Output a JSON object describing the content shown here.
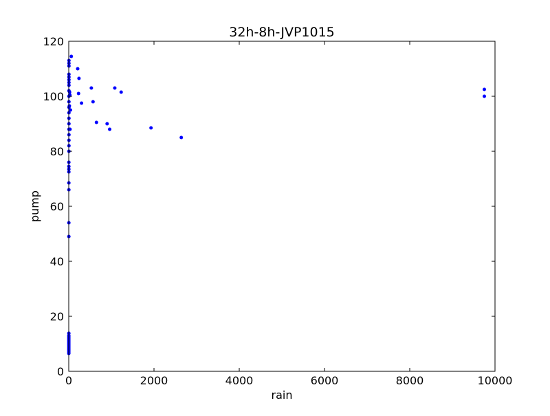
{
  "chart_data": {
    "type": "scatter",
    "title": "32h-8h-JVP1015",
    "xlabel": "rain",
    "ylabel": "pump",
    "xlim": [
      0,
      10000
    ],
    "ylim": [
      0,
      120
    ],
    "xticks": [
      0,
      2000,
      4000,
      6000,
      8000,
      10000
    ],
    "yticks": [
      0,
      20,
      40,
      60,
      80,
      100,
      120
    ],
    "xtick_labels": [
      "0",
      "2000",
      "4000",
      "6000",
      "8000",
      "10000"
    ],
    "ytick_labels": [
      "0",
      "20",
      "40",
      "60",
      "80",
      "100",
      "120"
    ],
    "grid": false,
    "marker_color": "#0000ff",
    "series": [
      {
        "points": [
          [
            2,
            6.5
          ],
          [
            2,
            7
          ],
          [
            2,
            7.5
          ],
          [
            2,
            8
          ],
          [
            2,
            8.5
          ],
          [
            2,
            9
          ],
          [
            2,
            9.5
          ],
          [
            2,
            10
          ],
          [
            2,
            10.5
          ],
          [
            2,
            11
          ],
          [
            2,
            11.5
          ],
          [
            2,
            12
          ],
          [
            2,
            12.5
          ],
          [
            2,
            13
          ],
          [
            3,
            13.8
          ],
          [
            3,
            49
          ],
          [
            3,
            54
          ],
          [
            3,
            66
          ],
          [
            3,
            68.5
          ],
          [
            3,
            72.5
          ],
          [
            3,
            73.5
          ],
          [
            3,
            74.5
          ],
          [
            3,
            76
          ],
          [
            5,
            80
          ],
          [
            5,
            82
          ],
          [
            5,
            84
          ],
          [
            5,
            86
          ],
          [
            5,
            88
          ],
          [
            5,
            90
          ],
          [
            5,
            92
          ],
          [
            5,
            94
          ],
          [
            5,
            96
          ],
          [
            5,
            98
          ],
          [
            5,
            100
          ],
          [
            5,
            102
          ],
          [
            5,
            104
          ],
          [
            5,
            105
          ],
          [
            5,
            106
          ],
          [
            5,
            107
          ],
          [
            5,
            108
          ],
          [
            5,
            111
          ],
          [
            5,
            112
          ],
          [
            5,
            113
          ],
          [
            15,
            96.5
          ],
          [
            20,
            101.5
          ],
          [
            25,
            100.5
          ],
          [
            30,
            88
          ],
          [
            40,
            95
          ],
          [
            60,
            114.5
          ],
          [
            210,
            110
          ],
          [
            230,
            101
          ],
          [
            240,
            106.5
          ],
          [
            300,
            97.5
          ],
          [
            530,
            103
          ],
          [
            570,
            98
          ],
          [
            650,
            90.5
          ],
          [
            900,
            90
          ],
          [
            960,
            88
          ],
          [
            1080,
            103
          ],
          [
            1230,
            101.5
          ],
          [
            1930,
            88.5
          ],
          [
            2640,
            85
          ],
          [
            9750,
            102.5
          ],
          [
            9750,
            100
          ]
        ]
      }
    ]
  }
}
